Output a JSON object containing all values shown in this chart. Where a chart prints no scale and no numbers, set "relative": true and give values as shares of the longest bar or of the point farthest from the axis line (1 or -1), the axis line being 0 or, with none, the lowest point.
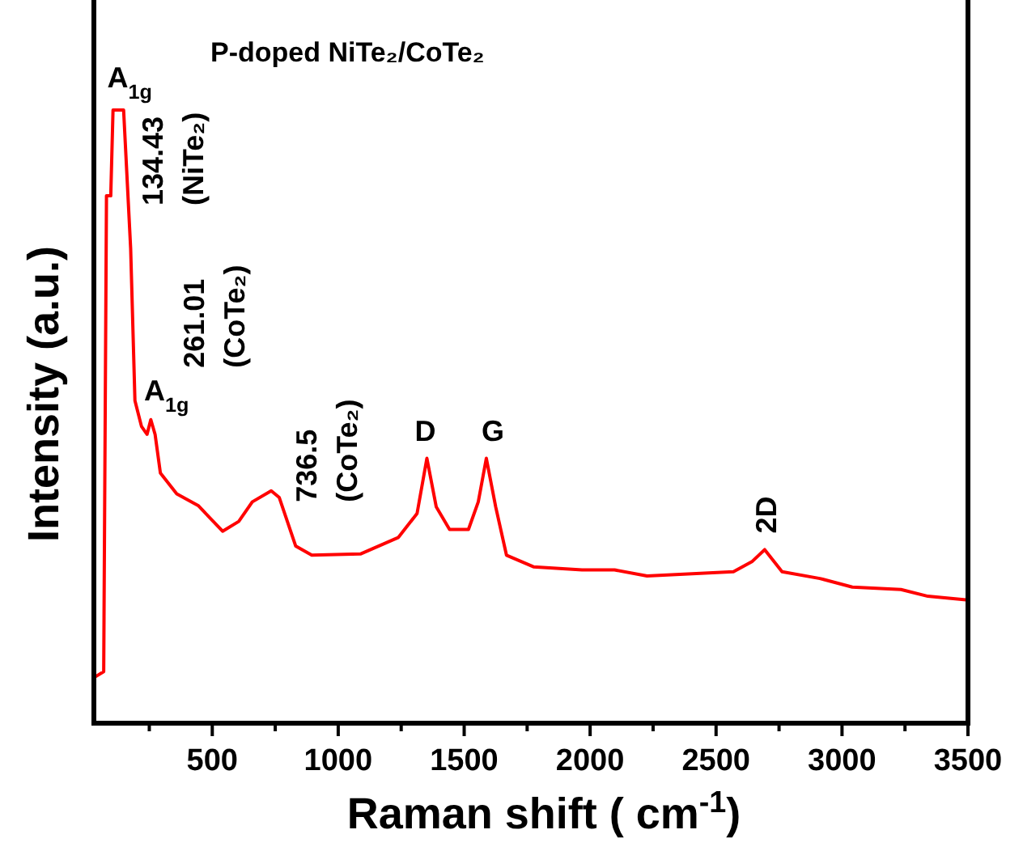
{
  "chart_data": {
    "type": "line",
    "title": "P-doped NiTe₂/CoTe₂",
    "xlabel": "Raman shift ( cm$^{-1}$)",
    "ylabel": "Intensity (a.u.)",
    "relative": true,
    "xlim": [
      30,
      3500
    ],
    "xticks": [
      {
        "value": 250,
        "label": null
      },
      500,
      {
        "value": 750,
        "label": null
      },
      1000,
      {
        "value": 1250,
        "label": null
      },
      1500,
      {
        "value": 1750,
        "label": null
      },
      2000,
      {
        "value": 2250,
        "label": null
      },
      2500,
      {
        "value": 2750,
        "label": null
      },
      3000,
      {
        "value": 3250,
        "label": null
      },
      3500
    ],
    "tick_labels": "x",
    "grid": false,
    "series": [
      {
        "color": "#ff0000",
        "x": [
          37,
          69,
          80,
          97,
          106,
          148,
          176,
          193,
          219,
          241,
          256,
          273,
          294,
          359,
          444,
          541,
          605,
          659,
          734,
          766,
          831,
          895,
          1088,
          1239,
          1313,
          1352,
          1389,
          1442,
          1517,
          1556,
          1588,
          1625,
          1668,
          1775,
          1968,
          2097,
          2226,
          2569,
          2644,
          2693,
          2762,
          2912,
          3041,
          3234,
          3341,
          3500
        ],
        "values": [
          0.076,
          0.084,
          0.86,
          0.86,
          1,
          1,
          0.774,
          0.526,
          0.484,
          0.471,
          0.495,
          0.471,
          0.408,
          0.374,
          0.355,
          0.313,
          0.329,
          0.361,
          0.379,
          0.368,
          0.289,
          0.274,
          0.276,
          0.303,
          0.342,
          0.432,
          0.353,
          0.316,
          0.316,
          0.361,
          0.432,
          0.353,
          0.274,
          0.255,
          0.25,
          0.25,
          0.24,
          0.247,
          0.264,
          0.283,
          0.247,
          0.236,
          0.222,
          0.218,
          0.207,
          0.201
        ]
      }
    ],
    "annotations": [
      {
        "text": "A$_{1g}$",
        "x": 134.43,
        "y": 1
      },
      {
        "text": "A$_{1g}$",
        "x": 261.01,
        "y": 0.495
      },
      {
        "text": "134.43\n(NiTe₂)",
        "x": 134.43,
        "y": 1
      },
      {
        "text": "261.01\n(CoTe₂)",
        "x": 261.01,
        "y": 0.495
      },
      {
        "text": "736.5\n(CoTe₂)",
        "x": 734,
        "y": 0.379
      },
      {
        "text": "D",
        "x": 1352,
        "y": 0.432
      },
      {
        "text": "G",
        "x": 1588,
        "y": 0.432
      },
      {
        "text": "2D",
        "x": 2693,
        "y": 0.283
      }
    ]
  }
}
